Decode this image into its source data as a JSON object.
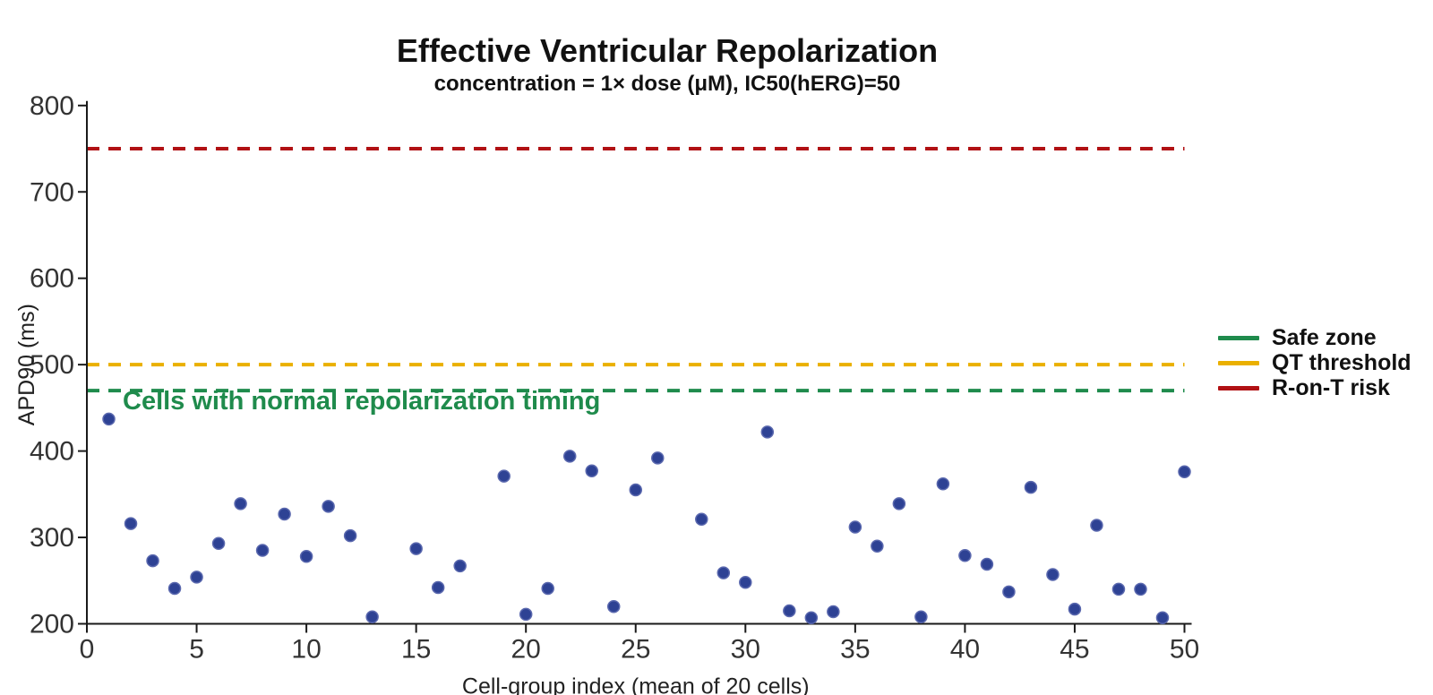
{
  "title": "Effective Ventricular Repolarization",
  "subtitle": "concentration = 1× dose (μM), IC50(hERG)=50",
  "annotation": {
    "text": "Cells with normal repolarization timing",
    "color": "#1f8b4c"
  },
  "legend": {
    "items": [
      {
        "label": "Safe zone",
        "color": "#1f8b4c"
      },
      {
        "label": "QT threshold",
        "color": "#eab000"
      },
      {
        "label": "R-on-T risk",
        "color": "#b11114"
      }
    ]
  },
  "colors": {
    "marker_fill": "#2e4294",
    "marker_edge": "#5a68ae",
    "axis": "#1a1a1a",
    "tick_text": "#333333"
  },
  "chart_data": {
    "type": "scatter",
    "title": "Effective Ventricular Repolarization",
    "subtitle": "concentration = 1× dose (μM), IC50(hERG)=50",
    "xlabel": "Cell-group index (mean of 20 cells)",
    "ylabel": "APD90 (ms)",
    "xlim": [
      0,
      50
    ],
    "ylim": [
      200,
      800
    ],
    "x_ticks": [
      0,
      5,
      10,
      15,
      20,
      25,
      30,
      35,
      40,
      45,
      50
    ],
    "y_ticks": [
      200,
      300,
      400,
      500,
      600,
      700,
      800
    ],
    "grid": false,
    "legend_position": "right-outside",
    "marker_color": "#2e4294",
    "points": [
      {
        "x": 1,
        "y": 437
      },
      {
        "x": 2,
        "y": 316
      },
      {
        "x": 3,
        "y": 273
      },
      {
        "x": 4,
        "y": 241
      },
      {
        "x": 5,
        "y": 254
      },
      {
        "x": 6,
        "y": 293
      },
      {
        "x": 7,
        "y": 339
      },
      {
        "x": 8,
        "y": 285
      },
      {
        "x": 9,
        "y": 327
      },
      {
        "x": 10,
        "y": 278
      },
      {
        "x": 11,
        "y": 336
      },
      {
        "x": 12,
        "y": 302
      },
      {
        "x": 13,
        "y": 208
      },
      {
        "x": 15,
        "y": 287
      },
      {
        "x": 16,
        "y": 242
      },
      {
        "x": 17,
        "y": 267
      },
      {
        "x": 19,
        "y": 371
      },
      {
        "x": 20,
        "y": 211
      },
      {
        "x": 21,
        "y": 241
      },
      {
        "x": 22,
        "y": 394
      },
      {
        "x": 23,
        "y": 377
      },
      {
        "x": 24,
        "y": 220
      },
      {
        "x": 25,
        "y": 355
      },
      {
        "x": 26,
        "y": 392
      },
      {
        "x": 28,
        "y": 321
      },
      {
        "x": 29,
        "y": 259
      },
      {
        "x": 30,
        "y": 248
      },
      {
        "x": 31,
        "y": 422
      },
      {
        "x": 32,
        "y": 215
      },
      {
        "x": 33,
        "y": 207
      },
      {
        "x": 34,
        "y": 214
      },
      {
        "x": 35,
        "y": 312
      },
      {
        "x": 36,
        "y": 290
      },
      {
        "x": 37,
        "y": 339
      },
      {
        "x": 38,
        "y": 208
      },
      {
        "x": 39,
        "y": 362
      },
      {
        "x": 40,
        "y": 279
      },
      {
        "x": 41,
        "y": 269
      },
      {
        "x": 42,
        "y": 237
      },
      {
        "x": 43,
        "y": 358
      },
      {
        "x": 44,
        "y": 257
      },
      {
        "x": 45,
        "y": 217
      },
      {
        "x": 46,
        "y": 314
      },
      {
        "x": 47,
        "y": 240
      },
      {
        "x": 48,
        "y": 240
      },
      {
        "x": 49,
        "y": 207
      },
      {
        "x": 50,
        "y": 376
      }
    ],
    "hlines": [
      {
        "label": "Safe zone",
        "y": 470,
        "color": "#1f8b4c",
        "style": "dashed"
      },
      {
        "label": "QT threshold",
        "y": 500,
        "color": "#eab000",
        "style": "dashed"
      },
      {
        "label": "R-on-T risk",
        "y": 750,
        "color": "#b11114",
        "style": "dashed"
      }
    ]
  }
}
